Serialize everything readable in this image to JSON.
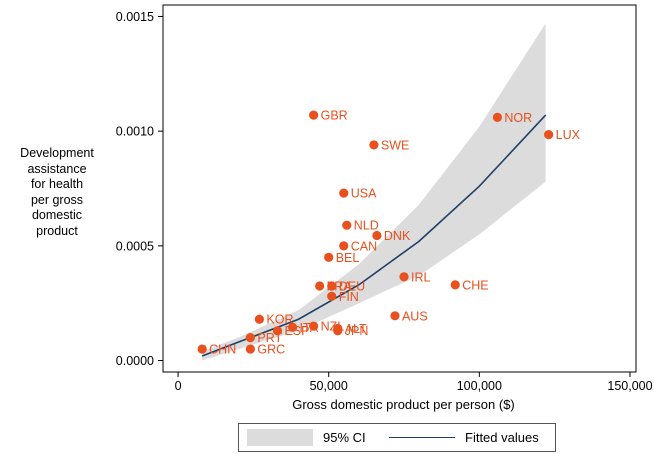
{
  "chart_data": {
    "type": "scatter",
    "xlabel": "Gross domestic product per person ($)",
    "ylabel_lines": [
      "Development",
      "assistance",
      "for health",
      "per gross",
      "domestic",
      "product"
    ],
    "xlim": [
      -5000,
      152000
    ],
    "ylim": [
      -5e-05,
      0.00155
    ],
    "x_ticks": [
      0,
      50000,
      100000,
      150000
    ],
    "x_tick_labels": [
      "0",
      "50,000",
      "100,000",
      "150,000"
    ],
    "y_ticks": [
      0.0,
      0.0005,
      0.001,
      0.0015
    ],
    "y_tick_labels": [
      "0.0000",
      "0.0005",
      "0.0010",
      "0.0015"
    ],
    "grid": false,
    "legend_position": "bottom",
    "legend": [
      {
        "label": "95% CI",
        "kind": "band",
        "color": "#dcdcdc"
      },
      {
        "label": "Fitted values",
        "kind": "line",
        "color": "#1f3f66"
      }
    ],
    "marker_color": "#e8501e",
    "fit_color": "#1f3f66",
    "ci_color": "#dcdcdc",
    "points": [
      {
        "label": "CHN",
        "x": 8000,
        "y": 5e-05
      },
      {
        "label": "GRC",
        "x": 24000,
        "y": 5e-05
      },
      {
        "label": "PRT",
        "x": 24000,
        "y": 0.0001
      },
      {
        "label": "KOR",
        "x": 27000,
        "y": 0.00018
      },
      {
        "label": "ESP",
        "x": 33000,
        "y": 0.00013
      },
      {
        "label": "ITA",
        "x": 38000,
        "y": 0.000145
      },
      {
        "label": "NZL",
        "x": 45000,
        "y": 0.00015
      },
      {
        "label": "ALT",
        "x": 53000,
        "y": 0.00014
      },
      {
        "label": "JPN",
        "x": 53000,
        "y": 0.00013
      },
      {
        "label": "FRA",
        "x": 47000,
        "y": 0.000325
      },
      {
        "label": "DEU",
        "x": 51000,
        "y": 0.000325
      },
      {
        "label": "FIN",
        "x": 51000,
        "y": 0.00028
      },
      {
        "label": "BEL",
        "x": 50000,
        "y": 0.00045
      },
      {
        "label": "CAN",
        "x": 55000,
        "y": 0.0005
      },
      {
        "label": "NLD",
        "x": 56000,
        "y": 0.00059
      },
      {
        "label": "DNK",
        "x": 66000,
        "y": 0.000545
      },
      {
        "label": "USA",
        "x": 55000,
        "y": 0.00073
      },
      {
        "label": "GBR",
        "x": 45000,
        "y": 0.00107
      },
      {
        "label": "SWE",
        "x": 65000,
        "y": 0.00094
      },
      {
        "label": "IRL",
        "x": 75000,
        "y": 0.000365
      },
      {
        "label": "AUS",
        "x": 72000,
        "y": 0.000195
      },
      {
        "label": "CHE",
        "x": 92000,
        "y": 0.00033
      },
      {
        "label": "NOR",
        "x": 106000,
        "y": 0.00106
      },
      {
        "label": "LUX",
        "x": 123000,
        "y": 0.000985
      }
    ],
    "fit": {
      "x": [
        8000,
        20000,
        40000,
        60000,
        80000,
        100000,
        122000
      ],
      "y": [
        2e-05,
        8e-05,
        0.00018,
        0.00033,
        0.00052,
        0.00076,
        0.00107
      ]
    },
    "ci_band": {
      "x": [
        8000,
        20000,
        40000,
        60000,
        80000,
        100000,
        122000
      ],
      "lower": [
        0.0,
        5e-05,
        0.00013,
        0.00025,
        0.00037,
        0.00055,
        0.00078
      ],
      "upper": [
        4e-05,
        0.0001,
        0.00022,
        0.00042,
        0.00068,
        0.00102,
        0.00147
      ]
    }
  }
}
